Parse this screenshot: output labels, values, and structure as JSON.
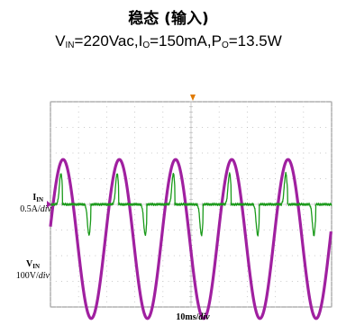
{
  "title": "稳态 (输入)",
  "subtitle": {
    "v_sym": "V",
    "v_sub": "IN",
    "v_val": "=220Vac,",
    "i_sym": "I",
    "i_sub": "O",
    "i_val": "=150mA,",
    "p_sym": "P",
    "p_sub": "O",
    "p_val": "=13.5W"
  },
  "chart_data": {
    "type": "line",
    "title": "稳态 (输入)",
    "conditions": "VIN=220Vac, IO=150mA, PO=13.5W",
    "x_scale": {
      "value": "10ms",
      "unit": "div"
    },
    "x_divisions": 10,
    "y_divisions": 8,
    "xlim_ms": [
      0,
      100
    ],
    "grid": true,
    "series": [
      {
        "name": "IIN",
        "label_sym": "I",
        "label_sub": "IN",
        "scale_value": "0.5A",
        "scale_unit": "div",
        "color": "#1a9a1a",
        "description": "Input current: narrow pulses near each voltage peak",
        "pulse_peak_divs": 1.2,
        "baseline_divs": 0
      },
      {
        "name": "VIN",
        "label_sym": "V",
        "label_sub": "IN",
        "scale_value": "100V",
        "scale_unit": "div",
        "color": "#a020a0",
        "description": "Input AC voltage sine, 50 Hz",
        "frequency_hz": 50,
        "amplitude_divs": 3.1,
        "offset_divs": -1.35
      }
    ],
    "trigger_marker_color": "#e07a00"
  }
}
